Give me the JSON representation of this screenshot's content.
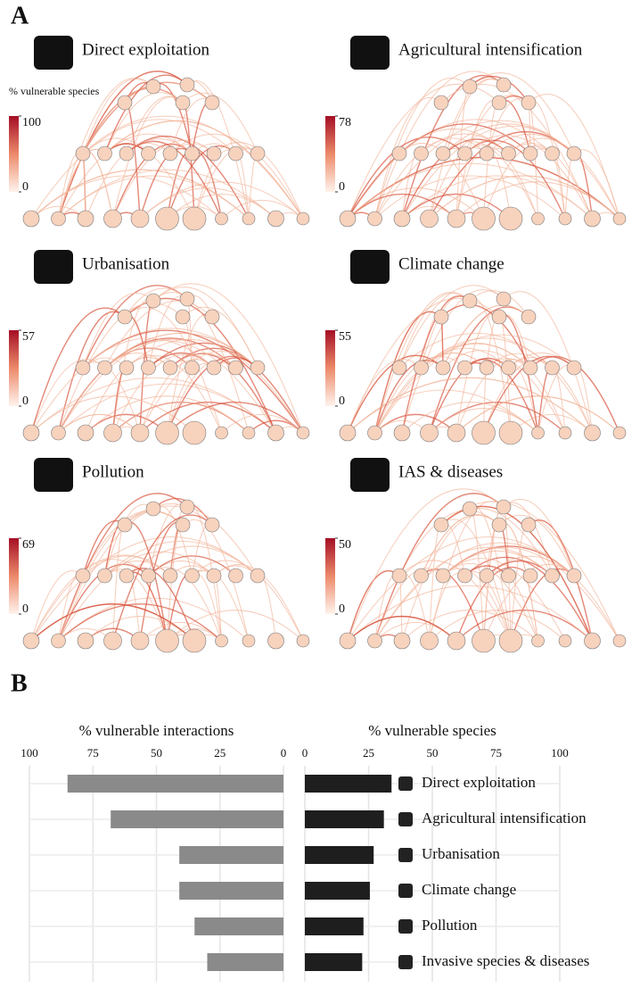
{
  "panel_a": {
    "label": "A",
    "colorbar_title": "% vulnerable species",
    "networks": [
      {
        "title": "Direct exploitation",
        "cbar_ticks": [
          0,
          100
        ]
      },
      {
        "title": "Agricultural intensification",
        "cbar_ticks": [
          0,
          78
        ]
      },
      {
        "title": "Urbanisation",
        "cbar_ticks": [
          0,
          57
        ]
      },
      {
        "title": "Climate change",
        "cbar_ticks": [
          0,
          55
        ]
      },
      {
        "title": "Pollution",
        "cbar_ticks": [
          0,
          69
        ]
      },
      {
        "title": "IAS & diseases",
        "cbar_ticks": [
          0,
          50
        ]
      }
    ]
  },
  "panel_b_label": "B",
  "chart_data": [
    {
      "type": "hbar",
      "title": "% vulnerable interactions",
      "reversed": true,
      "color": "#8a8a8a",
      "categories": [
        null,
        null,
        null,
        null,
        null,
        null
      ],
      "values": [
        85,
        68,
        41,
        41,
        35,
        30
      ],
      "xlim": [
        0,
        100
      ],
      "xticks": [
        0,
        25,
        50,
        75,
        100
      ],
      "grid": true
    },
    {
      "type": "hbar",
      "title": "% vulnerable species",
      "reversed": false,
      "color": "#1e1e1e",
      "categories": [
        "Direct exploitation",
        "Agricultural intensification",
        "Urbanisation",
        "Climate change",
        "Pollution",
        "Invasive species & diseases"
      ],
      "values": [
        34,
        31,
        27,
        25.5,
        23,
        22.5
      ],
      "xlim": [
        0,
        100
      ],
      "xticks": [
        0,
        25,
        50,
        75,
        100
      ],
      "grid": true
    }
  ]
}
